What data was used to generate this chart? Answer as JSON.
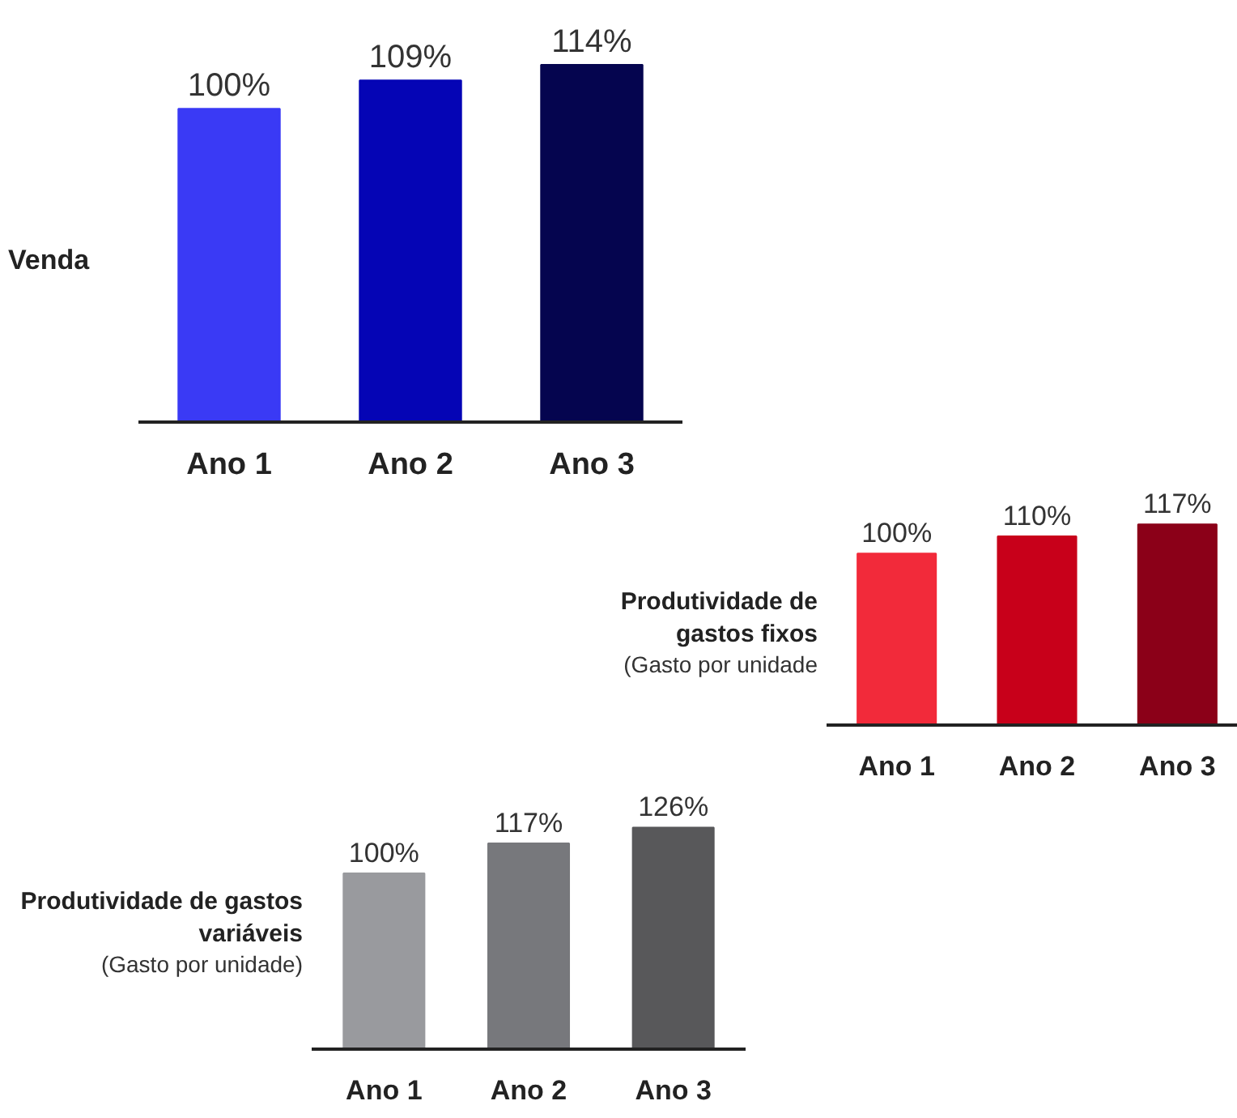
{
  "chart_data": [
    {
      "type": "bar",
      "ylabel": "Venda",
      "categories": [
        "Ano 1",
        "Ano 2",
        "Ano 3"
      ],
      "values": [
        100,
        109,
        114
      ],
      "colors": [
        "#3a3af5",
        "#0505b5",
        "#05054f"
      ],
      "value_labels": [
        "100%",
        "109%",
        "114%"
      ]
    },
    {
      "type": "bar",
      "ylabel": "Produtividade de gastos fixos",
      "subtitle": "(Gasto por unidade",
      "categories": [
        "Ano 1",
        "Ano 2",
        "Ano 3"
      ],
      "values": [
        100,
        110,
        117
      ],
      "colors": [
        "#f22a3a",
        "#c8001a",
        "#8b0018"
      ],
      "value_labels": [
        "100%",
        "110%",
        "117%"
      ]
    },
    {
      "type": "bar",
      "ylabel": "Produtividade de gastos variáveis",
      "subtitle": "(Gasto por unidade)",
      "categories": [
        "Ano 1",
        "Ano 2",
        "Ano 3"
      ],
      "values": [
        100,
        117,
        126
      ],
      "colors": [
        "#999a9e",
        "#77787c",
        "#58585a"
      ],
      "value_labels": [
        "100%",
        "117%",
        "126%"
      ]
    }
  ]
}
